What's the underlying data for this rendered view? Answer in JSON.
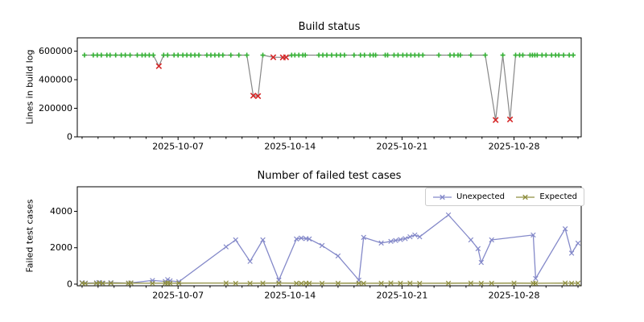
{
  "figure_bg": "#ffffff",
  "chart_data": [
    {
      "type": "line",
      "title": "Build status",
      "ylabel": "Lines in build log",
      "x_unit": "days since 2025-10-01",
      "xlim": [
        -0.3,
        31.2
      ],
      "ylim": [
        0,
        693000
      ],
      "grid": false,
      "yticks": [
        {
          "value": 0,
          "label": "0"
        },
        {
          "value": 200000,
          "label": "200000"
        },
        {
          "value": 400000,
          "label": "400000"
        },
        {
          "value": 600000,
          "label": "600000"
        }
      ],
      "xticks": [
        {
          "pos": 6,
          "label": "2025-10-07"
        },
        {
          "pos": 13,
          "label": "2025-10-14"
        },
        {
          "pos": 20,
          "label": "2025-10-21"
        },
        {
          "pos": 27,
          "label": "2025-10-28"
        }
      ],
      "line_color": "#878787",
      "marker_ok": {
        "shape": "plus",
        "color": "#35b135"
      },
      "marker_fail": {
        "shape": "x",
        "color": "#d62728"
      },
      "points": [
        [
          0.15,
          572000,
          "ok"
        ],
        [
          0.7,
          572000,
          "ok"
        ],
        [
          0.95,
          572000,
          "ok"
        ],
        [
          1.2,
          572000,
          "ok"
        ],
        [
          1.55,
          572000,
          "ok"
        ],
        [
          1.75,
          572000,
          "ok"
        ],
        [
          2.1,
          572000,
          "ok"
        ],
        [
          2.45,
          572000,
          "ok"
        ],
        [
          2.7,
          572000,
          "ok"
        ],
        [
          3.0,
          572000,
          "ok"
        ],
        [
          3.45,
          572000,
          "ok"
        ],
        [
          3.75,
          572000,
          "ok"
        ],
        [
          3.95,
          572000,
          "ok"
        ],
        [
          4.2,
          572000,
          "ok"
        ],
        [
          4.45,
          572000,
          "ok"
        ],
        [
          4.8,
          495000,
          "fail"
        ],
        [
          5.1,
          572000,
          "ok"
        ],
        [
          5.35,
          572000,
          "ok"
        ],
        [
          5.75,
          572000,
          "ok"
        ],
        [
          6.0,
          572000,
          "ok"
        ],
        [
          6.3,
          572000,
          "ok"
        ],
        [
          6.55,
          572000,
          "ok"
        ],
        [
          6.8,
          572000,
          "ok"
        ],
        [
          7.05,
          572000,
          "ok"
        ],
        [
          7.3,
          572000,
          "ok"
        ],
        [
          7.8,
          572000,
          "ok"
        ],
        [
          8.05,
          572000,
          "ok"
        ],
        [
          8.3,
          572000,
          "ok"
        ],
        [
          8.55,
          572000,
          "ok"
        ],
        [
          8.8,
          572000,
          "ok"
        ],
        [
          9.3,
          572000,
          "ok"
        ],
        [
          9.8,
          572000,
          "ok"
        ],
        [
          10.3,
          572000,
          "ok"
        ],
        [
          10.7,
          288000,
          "fail"
        ],
        [
          11.0,
          285000,
          "fail"
        ],
        [
          11.3,
          572000,
          "ok"
        ],
        [
          11.95,
          557000,
          "fail"
        ],
        [
          12.55,
          556000,
          "fail"
        ],
        [
          12.75,
          557000,
          "fail"
        ],
        [
          13.1,
          572000,
          "ok"
        ],
        [
          13.3,
          572000,
          "ok"
        ],
        [
          13.55,
          572000,
          "ok"
        ],
        [
          13.8,
          572000,
          "ok"
        ],
        [
          13.95,
          572000,
          "ok"
        ],
        [
          14.8,
          572000,
          "ok"
        ],
        [
          15.05,
          572000,
          "ok"
        ],
        [
          15.3,
          572000,
          "ok"
        ],
        [
          15.6,
          572000,
          "ok"
        ],
        [
          15.9,
          572000,
          "ok"
        ],
        [
          16.15,
          572000,
          "ok"
        ],
        [
          16.4,
          572000,
          "ok"
        ],
        [
          17.0,
          572000,
          "ok"
        ],
        [
          17.4,
          572000,
          "ok"
        ],
        [
          17.65,
          572000,
          "ok"
        ],
        [
          18.0,
          572000,
          "ok"
        ],
        [
          18.2,
          572000,
          "ok"
        ],
        [
          18.35,
          572000,
          "ok"
        ],
        [
          18.95,
          572000,
          "ok"
        ],
        [
          19.1,
          572000,
          "ok"
        ],
        [
          19.5,
          572000,
          "ok"
        ],
        [
          19.75,
          572000,
          "ok"
        ],
        [
          20.05,
          572000,
          "ok"
        ],
        [
          20.3,
          572000,
          "ok"
        ],
        [
          20.55,
          572000,
          "ok"
        ],
        [
          20.8,
          572000,
          "ok"
        ],
        [
          21.05,
          572000,
          "ok"
        ],
        [
          21.3,
          572000,
          "ok"
        ],
        [
          22.3,
          572000,
          "ok"
        ],
        [
          23.0,
          572000,
          "ok"
        ],
        [
          23.25,
          572000,
          "ok"
        ],
        [
          23.5,
          572000,
          "ok"
        ],
        [
          23.65,
          572000,
          "ok"
        ],
        [
          24.3,
          572000,
          "ok"
        ],
        [
          25.2,
          572000,
          "ok"
        ],
        [
          25.85,
          118000,
          "fail"
        ],
        [
          26.3,
          572000,
          "ok"
        ],
        [
          26.75,
          122000,
          "fail"
        ],
        [
          27.1,
          572000,
          "ok"
        ],
        [
          27.35,
          572000,
          "ok"
        ],
        [
          27.55,
          572000,
          "ok"
        ],
        [
          28.0,
          572000,
          "ok"
        ],
        [
          28.15,
          572000,
          "ok"
        ],
        [
          28.3,
          572000,
          "ok"
        ],
        [
          28.45,
          572000,
          "ok"
        ],
        [
          28.75,
          572000,
          "ok"
        ],
        [
          29.0,
          572000,
          "ok"
        ],
        [
          29.35,
          572000,
          "ok"
        ],
        [
          29.6,
          572000,
          "ok"
        ],
        [
          29.8,
          572000,
          "ok"
        ],
        [
          30.1,
          572000,
          "ok"
        ],
        [
          30.45,
          572000,
          "ok"
        ],
        [
          30.7,
          572000,
          "ok"
        ]
      ]
    },
    {
      "type": "line",
      "title": "Number of failed test cases",
      "ylabel": "Failed test cases",
      "x_unit": "days since 2025-10-01",
      "xlim": [
        -0.3,
        31.2
      ],
      "ylim": [
        -90,
        5350
      ],
      "grid": false,
      "legend_position": "upper right",
      "yticks": [
        {
          "value": 0,
          "label": "0"
        },
        {
          "value": 2000,
          "label": "2000"
        },
        {
          "value": 4000,
          "label": "4000"
        }
      ],
      "xticks": [
        {
          "pos": 6,
          "label": "2025-10-07"
        },
        {
          "pos": 13,
          "label": "2025-10-14"
        },
        {
          "pos": 20,
          "label": "2025-10-21"
        },
        {
          "pos": 27,
          "label": "2025-10-28"
        }
      ],
      "series": [
        {
          "name": "Unexpected",
          "color": "#8489c9",
          "marker": "x",
          "points": [
            [
              0.0,
              80
            ],
            [
              0.2,
              60
            ],
            [
              0.9,
              70
            ],
            [
              1.05,
              90
            ],
            [
              1.25,
              60
            ],
            [
              1.8,
              80
            ],
            [
              2.9,
              60
            ],
            [
              3.05,
              70
            ],
            [
              4.4,
              200
            ],
            [
              5.2,
              150
            ],
            [
              5.35,
              250
            ],
            [
              5.5,
              180
            ],
            [
              6.05,
              130
            ],
            [
              9.0,
              2050
            ],
            [
              9.6,
              2430
            ],
            [
              10.5,
              1250
            ],
            [
              11.3,
              2430
            ],
            [
              12.3,
              220
            ],
            [
              13.4,
              2480
            ],
            [
              13.7,
              2530
            ],
            [
              14.0,
              2500
            ],
            [
              14.2,
              2480
            ],
            [
              15.0,
              2120
            ],
            [
              16.0,
              1550
            ],
            [
              17.3,
              220
            ],
            [
              17.6,
              2570
            ],
            [
              18.7,
              2260
            ],
            [
              19.3,
              2350
            ],
            [
              19.6,
              2400
            ],
            [
              19.9,
              2450
            ],
            [
              20.2,
              2500
            ],
            [
              20.5,
              2600
            ],
            [
              20.8,
              2700
            ],
            [
              21.1,
              2600
            ],
            [
              22.9,
              3800
            ],
            [
              24.3,
              2430
            ],
            [
              24.75,
              1950
            ],
            [
              24.95,
              1190
            ],
            [
              25.6,
              2430
            ],
            [
              28.2,
              2700
            ],
            [
              28.35,
              310
            ],
            [
              30.2,
              3040
            ],
            [
              30.6,
              1700
            ],
            [
              31.0,
              2250
            ]
          ]
        },
        {
          "name": "Expected",
          "color": "#8f8f40",
          "marker": "x",
          "points": [
            [
              0.0,
              60
            ],
            [
              0.2,
              40
            ],
            [
              0.9,
              50
            ],
            [
              1.1,
              70
            ],
            [
              1.3,
              45
            ],
            [
              1.8,
              55
            ],
            [
              2.9,
              50
            ],
            [
              3.05,
              60
            ],
            [
              4.4,
              45
            ],
            [
              5.2,
              55
            ],
            [
              5.35,
              65
            ],
            [
              5.5,
              50
            ],
            [
              6.05,
              55
            ],
            [
              9.0,
              60
            ],
            [
              9.6,
              45
            ],
            [
              10.5,
              50
            ],
            [
              11.3,
              55
            ],
            [
              12.3,
              60
            ],
            [
              13.4,
              50
            ],
            [
              13.7,
              45
            ],
            [
              14.0,
              55
            ],
            [
              14.2,
              50
            ],
            [
              15.0,
              45
            ],
            [
              16.0,
              50
            ],
            [
              17.3,
              55
            ],
            [
              17.6,
              45
            ],
            [
              18.7,
              50
            ],
            [
              19.3,
              60
            ],
            [
              19.9,
              50
            ],
            [
              20.5,
              55
            ],
            [
              21.1,
              45
            ],
            [
              22.9,
              50
            ],
            [
              24.3,
              55
            ],
            [
              24.95,
              45
            ],
            [
              25.6,
              50
            ],
            [
              27.0,
              55
            ],
            [
              28.2,
              50
            ],
            [
              28.35,
              45
            ],
            [
              30.2,
              60
            ],
            [
              30.6,
              50
            ],
            [
              31.0,
              55
            ]
          ]
        }
      ]
    }
  ]
}
